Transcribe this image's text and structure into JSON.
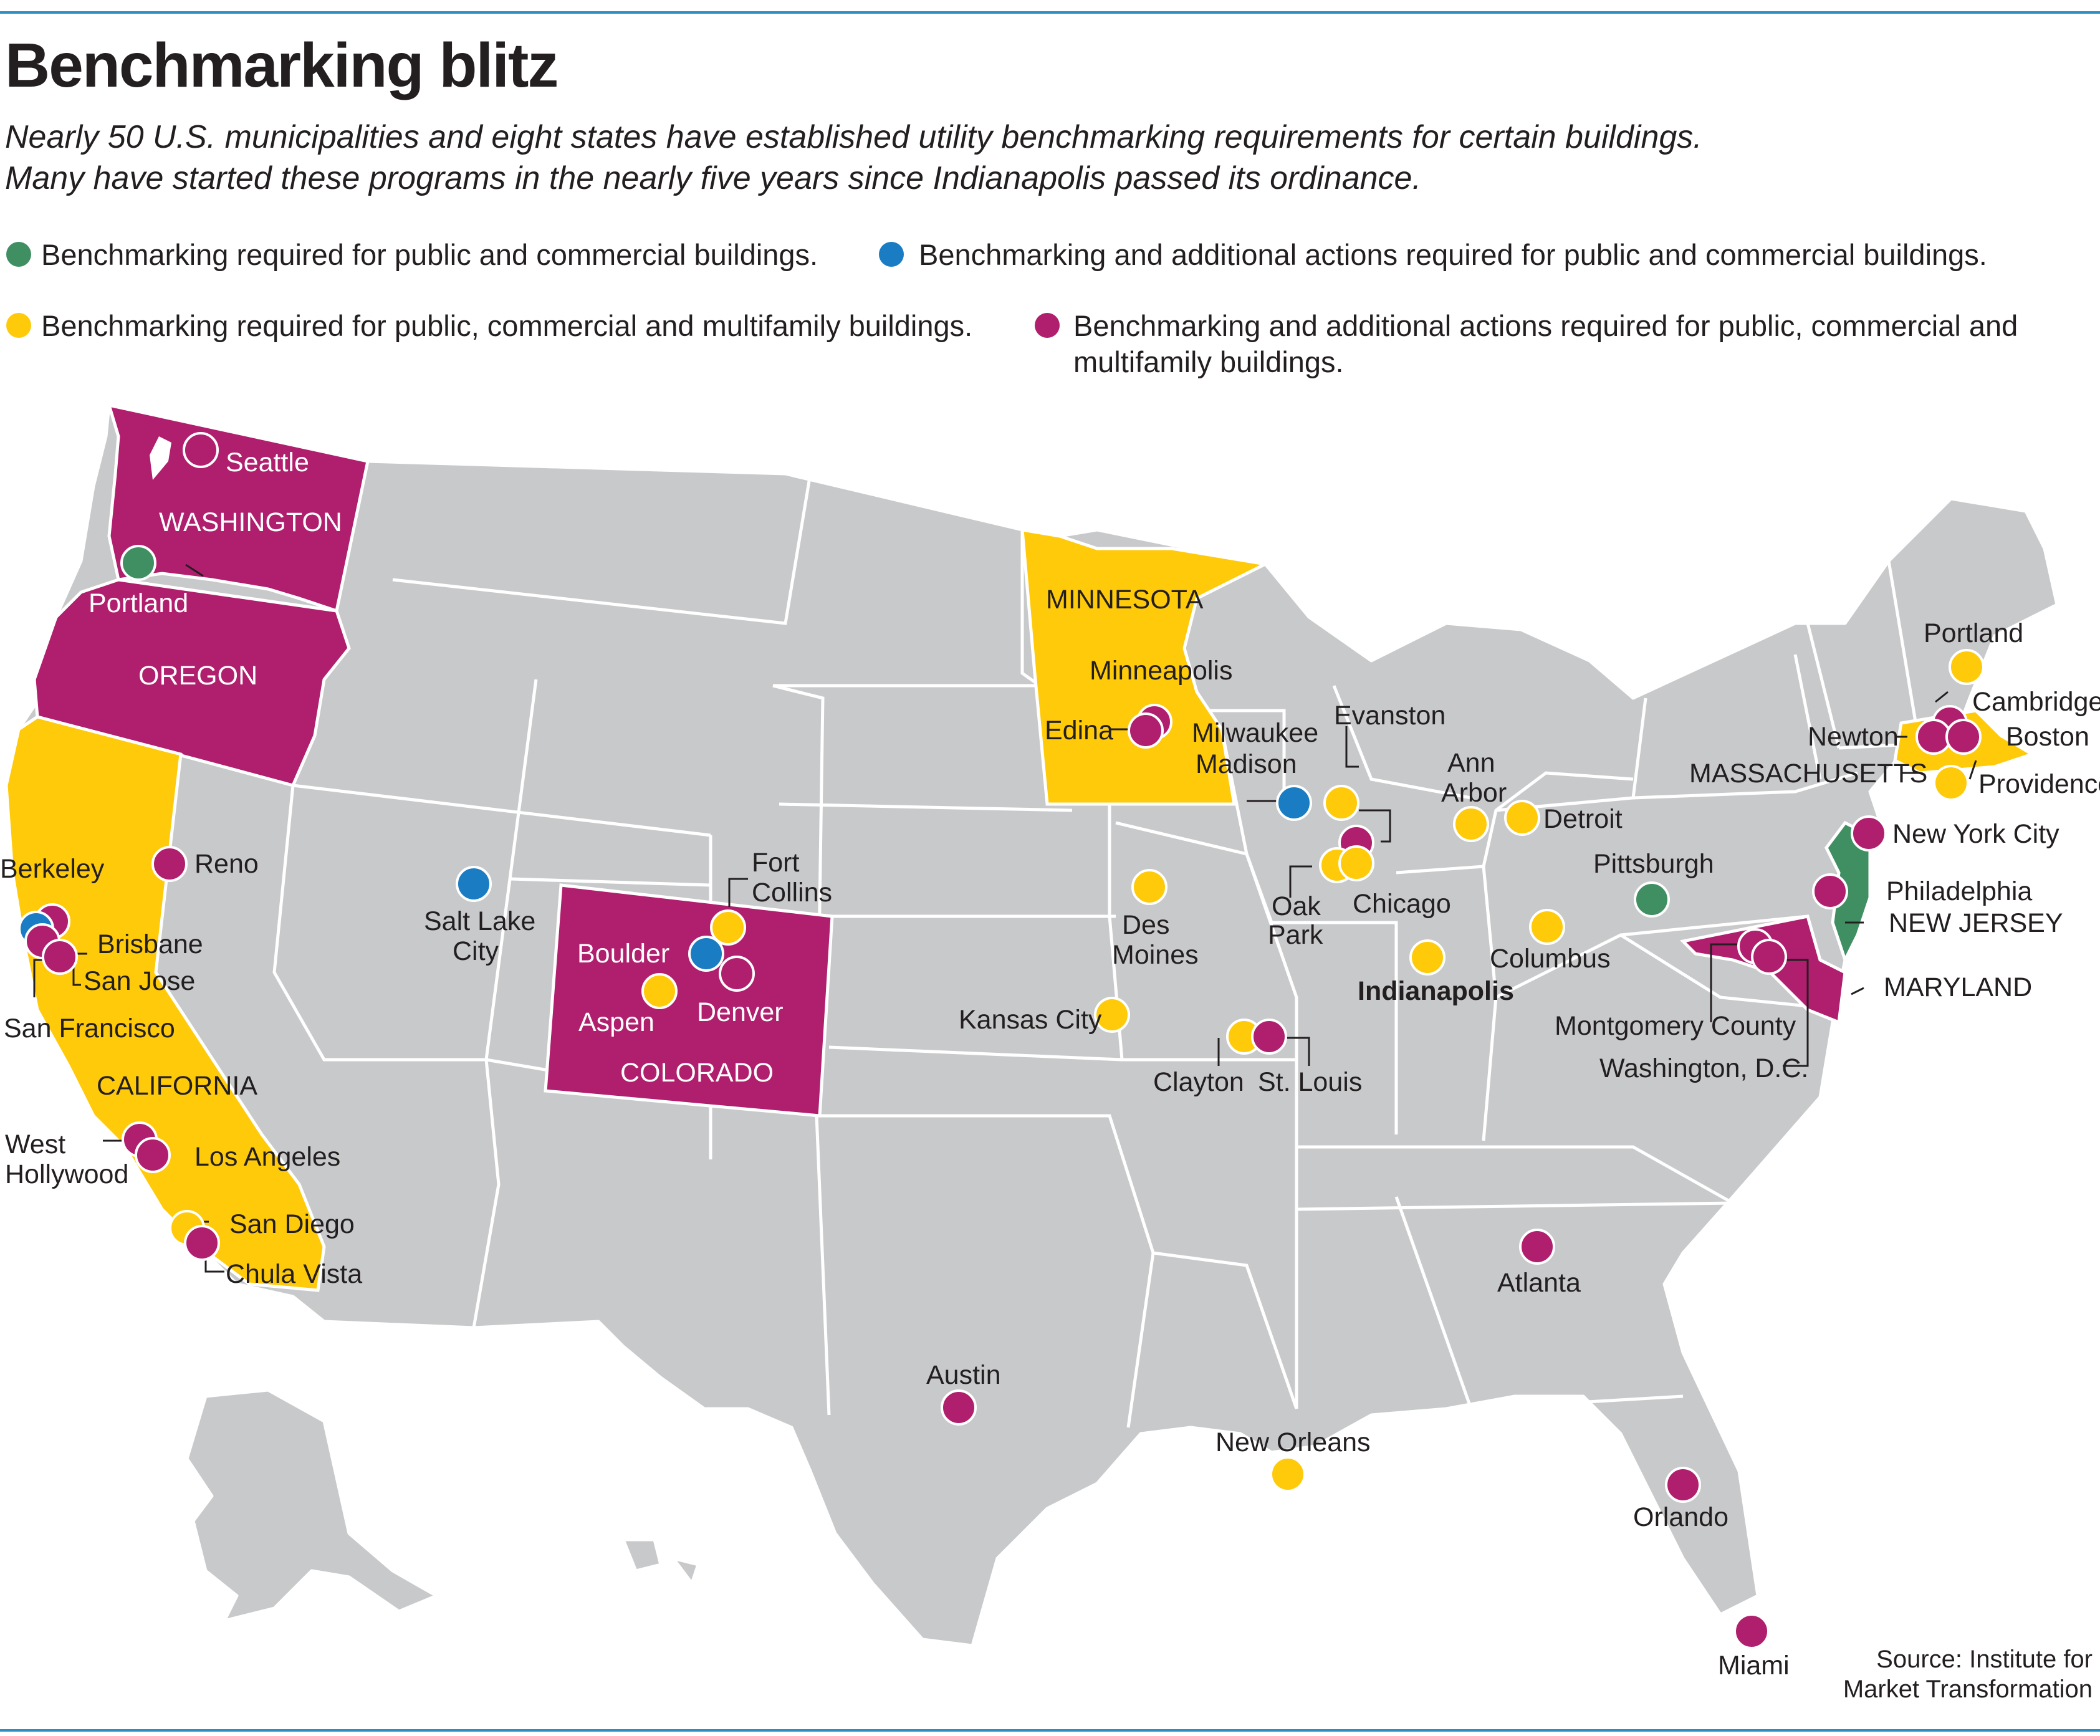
{
  "title": "Benchmarking blitz",
  "subtitle": [
    "Nearly 50 U.S. municipalities and eight states have established utility benchmarking requirements for certain buildings.",
    "Many have started these programs in the nearly five years since Indianapolis passed its ordinance."
  ],
  "colors": {
    "green": "#3f8f62",
    "blue": "#1a7cc2",
    "yellow": "#ffca0a",
    "magenta": "#b01e6e",
    "land": "#c8c9cb",
    "rule": "#2b8fc4"
  },
  "legend": [
    {
      "color": "green",
      "label": "Benchmarking required for public and commercial buildings."
    },
    {
      "color": "blue",
      "label": "Benchmarking and additional actions required for public and commercial buildings."
    },
    {
      "color": "yellow",
      "label": "Benchmarking required for public, commercial and multifamily buildings."
    },
    {
      "color": "magenta",
      "label": "Benchmarking and additional actions required for public, commercial and multifamily buildings."
    }
  ],
  "states": [
    {
      "name": "WASHINGTON",
      "category": "magenta"
    },
    {
      "name": "OREGON",
      "category": "magenta"
    },
    {
      "name": "CALIFORNIA",
      "category": "yellow"
    },
    {
      "name": "COLORADO",
      "category": "magenta"
    },
    {
      "name": "MINNESOTA",
      "category": "yellow"
    },
    {
      "name": "MASSACHUSETTS",
      "category": "yellow"
    },
    {
      "name": "NEW JERSEY",
      "category": "green"
    },
    {
      "name": "MARYLAND",
      "category": "magenta"
    }
  ],
  "cities": [
    {
      "name": "Seattle",
      "category": "magenta"
    },
    {
      "name": "Portland",
      "category": "green"
    },
    {
      "name": "Berkeley",
      "category": "magenta"
    },
    {
      "name": "Brisbane",
      "category": "magenta"
    },
    {
      "name": "San Francisco",
      "category": "blue"
    },
    {
      "name": "San Jose",
      "category": "magenta"
    },
    {
      "name": "Reno",
      "category": "magenta"
    },
    {
      "name": "West Hollywood",
      "category": "magenta"
    },
    {
      "name": "Los Angeles",
      "category": "magenta"
    },
    {
      "name": "San Diego",
      "category": "yellow"
    },
    {
      "name": "Chula Vista",
      "category": "magenta"
    },
    {
      "name": "Salt Lake City",
      "category": "blue"
    },
    {
      "name": "Fort Collins",
      "category": "yellow"
    },
    {
      "name": "Boulder",
      "category": "blue"
    },
    {
      "name": "Denver",
      "category": "magenta"
    },
    {
      "name": "Aspen",
      "category": "yellow"
    },
    {
      "name": "Minneapolis",
      "category": "magenta"
    },
    {
      "name": "Edina",
      "category": "magenta"
    },
    {
      "name": "Des Moines",
      "category": "yellow"
    },
    {
      "name": "Kansas City",
      "category": "yellow"
    },
    {
      "name": "Austin",
      "category": "magenta"
    },
    {
      "name": "Madison",
      "category": "blue"
    },
    {
      "name": "Milwaukee",
      "category": "yellow"
    },
    {
      "name": "Evanston",
      "category": "magenta"
    },
    {
      "name": "Chicago",
      "category": "yellow"
    },
    {
      "name": "Oak Park",
      "category": "yellow"
    },
    {
      "name": "Clayton",
      "category": "yellow"
    },
    {
      "name": "St. Louis",
      "category": "magenta"
    },
    {
      "name": "New Orleans",
      "category": "yellow"
    },
    {
      "name": "Indianapolis",
      "category": "yellow"
    },
    {
      "name": "Ann Arbor",
      "category": "yellow"
    },
    {
      "name": "Detroit",
      "category": "yellow"
    },
    {
      "name": "Columbus",
      "category": "yellow"
    },
    {
      "name": "Pittsburgh",
      "category": "green"
    },
    {
      "name": "Atlanta",
      "category": "magenta"
    },
    {
      "name": "Orlando",
      "category": "magenta"
    },
    {
      "name": "Miami",
      "category": "magenta"
    },
    {
      "name": "Portland",
      "category": "yellow"
    },
    {
      "name": "Cambridge",
      "category": "magenta"
    },
    {
      "name": "Newton",
      "category": "magenta"
    },
    {
      "name": "Boston",
      "category": "magenta"
    },
    {
      "name": "Providence",
      "category": "yellow"
    },
    {
      "name": "New York City",
      "category": "magenta"
    },
    {
      "name": "Philadelphia",
      "category": "magenta"
    },
    {
      "name": "Montgomery County",
      "category": "magenta"
    },
    {
      "name": "Washington, D.C.",
      "category": "magenta"
    }
  ],
  "source": [
    "Source: Institute for",
    "Market Transformation"
  ]
}
